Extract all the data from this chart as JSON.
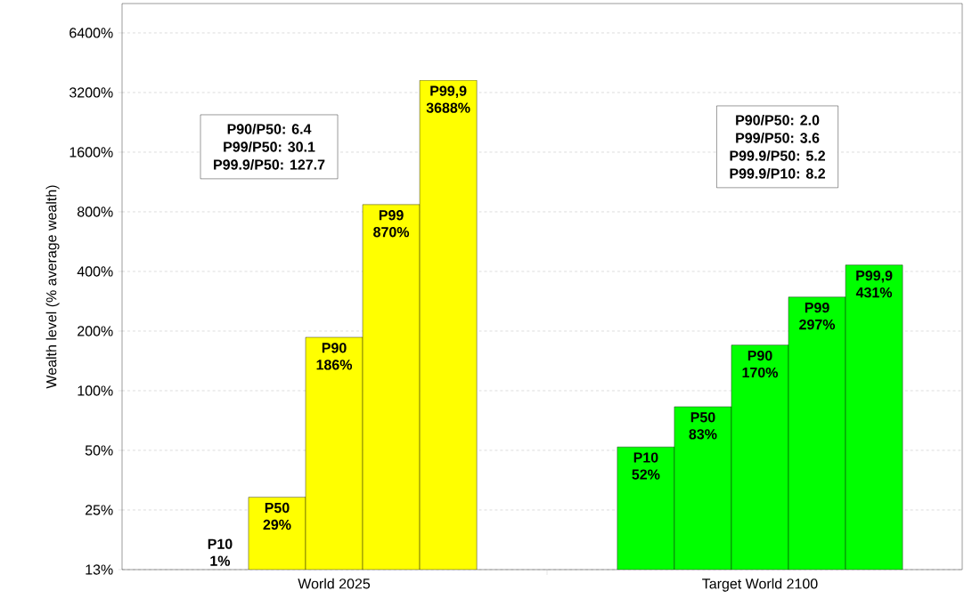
{
  "chart_data": {
    "type": "bar",
    "ylabel": "Wealth level (% average wealth)",
    "categories": [
      "World 2025",
      "Target World 2100"
    ],
    "series": [
      {
        "name": "P10",
        "colors": [
          "#ffff00",
          "#00ff00"
        ],
        "values": [
          null,
          52
        ],
        "value_labels": [
          "1%",
          "52%"
        ]
      },
      {
        "name": "P50",
        "colors": [
          "#ffff00",
          "#00ff00"
        ],
        "values": [
          29,
          83
        ],
        "value_labels": [
          "29%",
          "83%"
        ]
      },
      {
        "name": "P90",
        "colors": [
          "#ffff00",
          "#00ff00"
        ],
        "values": [
          186,
          170
        ],
        "value_labels": [
          "186%",
          "170%"
        ]
      },
      {
        "name": "P99",
        "colors": [
          "#ffff00",
          "#00ff00"
        ],
        "values": [
          870,
          297
        ],
        "value_labels": [
          "870%",
          "297%"
        ]
      },
      {
        "name": "P99,9",
        "colors": [
          "#ffff00",
          "#00ff00"
        ],
        "values": [
          3688,
          431
        ],
        "value_labels": [
          "3688%",
          "431%"
        ]
      }
    ],
    "log": "y",
    "ylim": [
      12.5,
      9000
    ],
    "yticks": [
      {
        "value": 12.5,
        "label": "13%"
      },
      {
        "value": 25,
        "label": "25%"
      },
      {
        "value": 50,
        "label": "50%"
      },
      {
        "value": 100,
        "label": "100%"
      },
      {
        "value": 200,
        "label": "200%"
      },
      {
        "value": 400,
        "label": "400%"
      },
      {
        "value": 800,
        "label": "800%"
      },
      {
        "value": 1600,
        "label": "1600%"
      },
      {
        "value": 3200,
        "label": "3200%"
      },
      {
        "value": 6400,
        "label": "6400%"
      }
    ],
    "grid": "y",
    "annotations": [
      "P90/P50: 6.4",
      "P99/P50: 30.1",
      "P99.9/P50: 127.7",
      "P90/P50: 2.0",
      "P99/P50: 3.6",
      "P99.9/P50: 5.2",
      "P99.9/P10: 8.2"
    ]
  }
}
